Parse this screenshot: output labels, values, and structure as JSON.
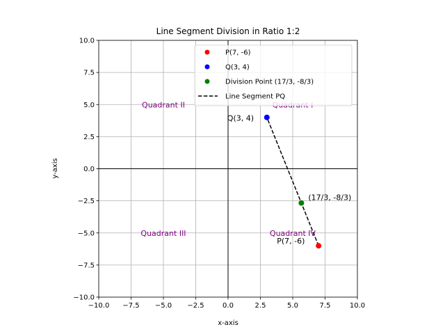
{
  "chart_data": {
    "type": "scatter",
    "title": "Line Segment Division in Ratio 1:2",
    "xlabel": "x-axis",
    "ylabel": "y-axis",
    "xlim": [
      -10,
      10
    ],
    "ylim": [
      -10,
      10
    ],
    "xticks": [
      "−10.0",
      "−7.5",
      "−5.0",
      "−2.5",
      "0.0",
      "2.5",
      "5.0",
      "7.5",
      "10.0"
    ],
    "yticks": [
      "−10.0",
      "−7.5",
      "−5.0",
      "−2.5",
      "0.0",
      "2.5",
      "5.0",
      "7.5",
      "10.0"
    ],
    "tick_values": [
      -10,
      -7.5,
      -5,
      -2.5,
      0,
      2.5,
      5,
      7.5,
      10
    ],
    "grid": true,
    "legend_position": "top-right",
    "series": [
      {
        "name": "P(7, -6)",
        "type": "point",
        "color": "#ff0000",
        "x": [
          7
        ],
        "y": [
          -6
        ]
      },
      {
        "name": "Q(3, 4)",
        "type": "point",
        "color": "#0000ff",
        "x": [
          3
        ],
        "y": [
          4
        ]
      },
      {
        "name": "Division Point (17/3, -8/3)",
        "type": "point",
        "color": "#008000",
        "x": [
          5.6667
        ],
        "y": [
          -2.6667
        ]
      },
      {
        "name": "Line Segment PQ",
        "type": "dashed-line",
        "color": "#000000",
        "x": [
          7,
          3
        ],
        "y": [
          -6,
          4
        ]
      }
    ],
    "annotations": [
      {
        "text": "P(7, -6)",
        "x": 7,
        "y": -6
      },
      {
        "text": "Q(3, 4)",
        "x": 3,
        "y": 4
      },
      {
        "text": "(17/3, -8/3)",
        "x": 5.6667,
        "y": -2.6667
      }
    ],
    "quadrant_labels": [
      {
        "text": "Quadrant I",
        "x": 5,
        "y": 5
      },
      {
        "text": "Quadrant II",
        "x": -5,
        "y": 5
      },
      {
        "text": "Quadrant III",
        "x": -5,
        "y": -5
      },
      {
        "text": "Quadrant IV",
        "x": 5,
        "y": -5
      }
    ],
    "colors": {
      "quadrant_text": "#800080",
      "grid": "#b0b0b0",
      "axes_lines": "#000000"
    }
  }
}
